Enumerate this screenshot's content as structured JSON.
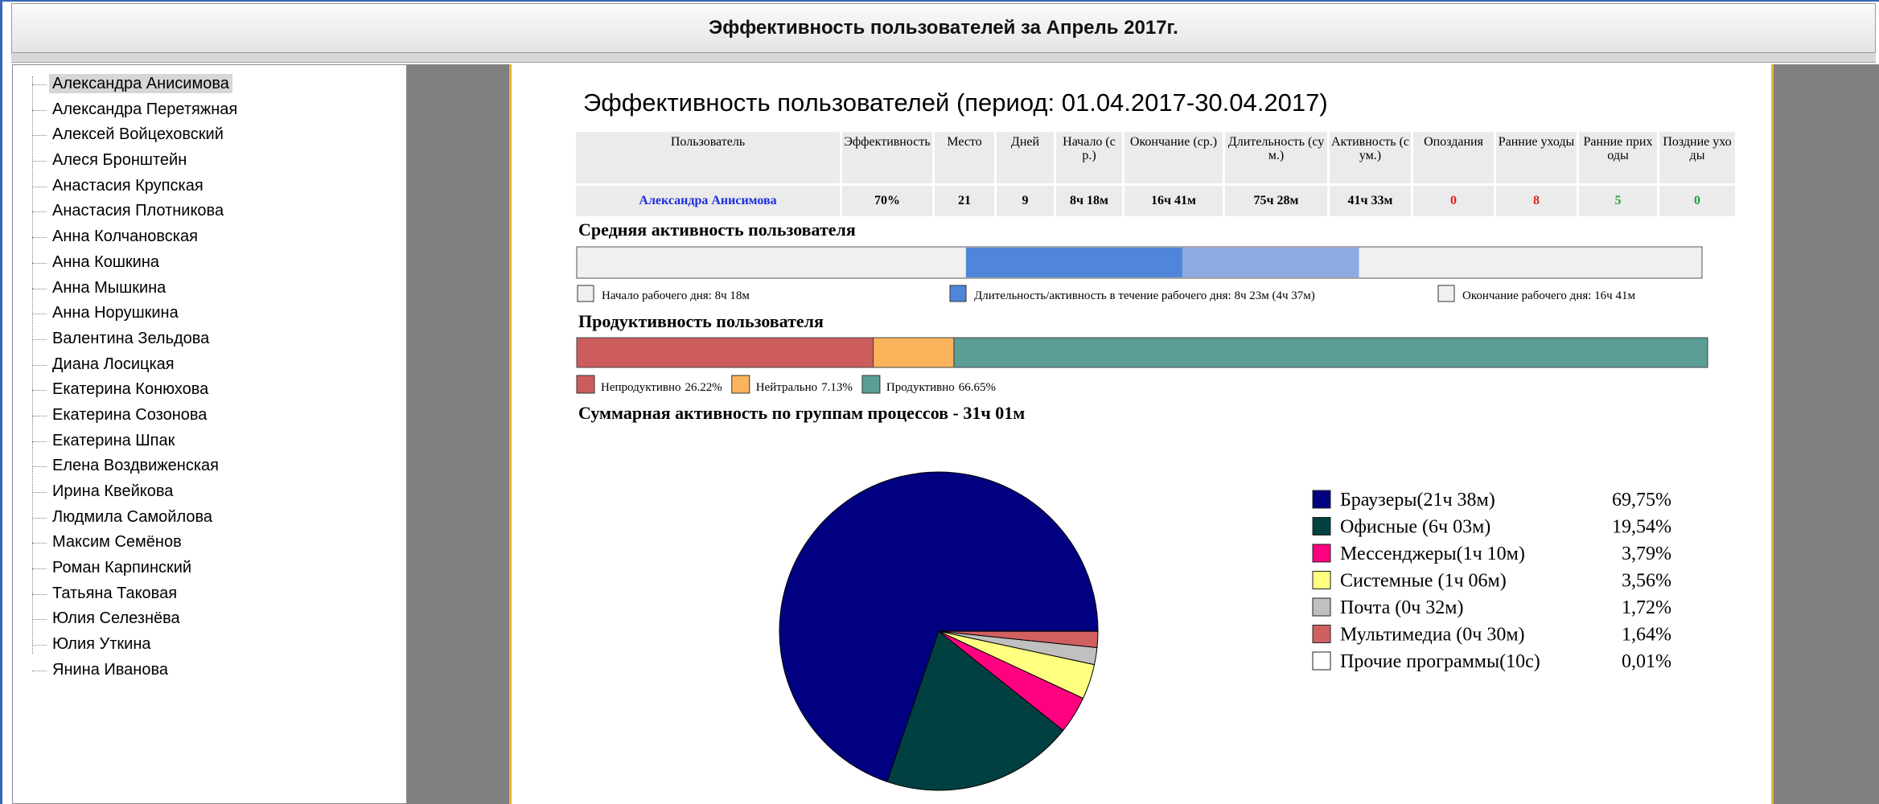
{
  "header": {
    "title": "Эффективность пользователей за Апрель 2017г."
  },
  "users": [
    "Александра Анисимова",
    "Александра Перетяжная",
    "Алексей Войцеховский",
    "Алеся Бронштейн",
    "Анастасия Крупская",
    "Анастасия Плотникова",
    "Анна Колчановская",
    "Анна Кошкина",
    "Анна Мышкина",
    "Анна Норушкина",
    "Валентина Зельдова",
    "Диана Лосицкая",
    "Екатерина Конюхова",
    "Екатерина Созонова",
    "Екатерина Шпак",
    "Елена Воздвиженская",
    "Ирина Квейкова",
    "Людмила Самойлова",
    "Максим Семёнов",
    "Роман Карпинский",
    "Татьяна Таковая",
    "Юлия Селезнёва",
    "Юлия Уткина",
    "Янина Иванова"
  ],
  "report": {
    "title": "Эффективность пользователей (период: 01.04.2017-30.04.2017)",
    "table": {
      "headers": [
        "Пользователь",
        "Эффективность",
        "Место",
        "Дней",
        "Начало (ср.)",
        "Окончание (ср.)",
        "Длительность (сум.)",
        "Активность (сум.)",
        "Опоздания",
        "Ранние уходы",
        "Ранние приходы",
        "Поздние уходы"
      ],
      "rows": [
        [
          "Александра Анисимова",
          "70%",
          "21",
          "9",
          "8ч 18м",
          "16ч 41м",
          "75ч 28м",
          "41ч 33м",
          "0",
          "8",
          "5",
          "0"
        ]
      ]
    },
    "activity": {
      "title": "Средняя активность пользователя",
      "xlim": [
        0,
        24
      ],
      "start": 8.3,
      "active": 4.617,
      "end": 16.683,
      "colors": {
        "background": "#f0f0f0",
        "active": "#4f86d9",
        "duration": "#8eaae2"
      },
      "legend": [
        "Начало рабочего дня: 8ч 18м",
        "Длительность/активность в течение рабочего дня: 8ч 23м (4ч 37м)",
        "Окончание рабочего дня: 16ч 41м"
      ]
    },
    "productivity": {
      "title": "Продуктивность пользователя",
      "xlim": [
        0,
        100
      ],
      "categories": [
        "Непродуктивно",
        "Нейтрально",
        "Продуктивно"
      ],
      "values": [
        26.22,
        7.13,
        66.65
      ],
      "value_labels": [
        "26.22%",
        "7.13%",
        "66.65%"
      ],
      "colors": [
        "#cd5c5c",
        "#fbb45c",
        "#5a9e96"
      ]
    }
  },
  "chart_data": {
    "type": "pie",
    "title": "Суммарная активность по группам процессов - 31ч 01м",
    "categories": [
      "Браузеры(21ч 38м)",
      "Офисные (6ч 03м)",
      "Мессенджеры(1ч 10м)",
      "Системные (1ч 06м)",
      "Почта (0ч 32м)",
      "Мультимедиа (0ч 30м)",
      "Прочие программы(10с)"
    ],
    "values": [
      69.75,
      19.54,
      3.79,
      3.56,
      1.72,
      1.64,
      0.01
    ],
    "value_labels": [
      "69,75%",
      "19,54%",
      "3,79%",
      "3,56%",
      "1,72%",
      "1,64%",
      "0,01%"
    ],
    "colors": [
      "#000080",
      "#004040",
      "#ff0080",
      "#ffff80",
      "#c0c0c0",
      "#d06060",
      "#ffffff"
    ]
  }
}
